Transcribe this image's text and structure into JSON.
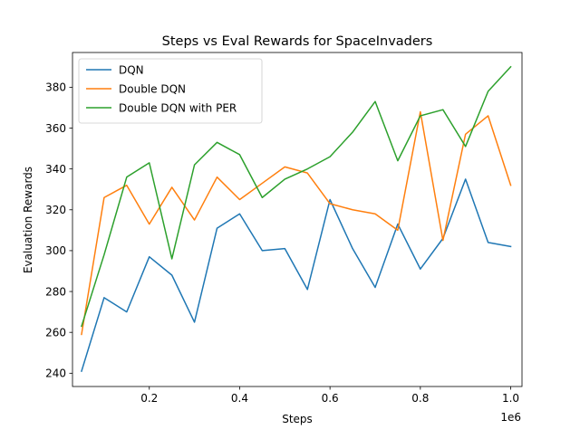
{
  "chart_data": {
    "type": "line",
    "title": "Steps vs Eval Rewards for SpaceInvaders",
    "xlabel": "Steps",
    "ylabel": "Evaluation Rewards",
    "x_offset_label": "1e6",
    "xlim": [
      0.03,
      1.025
    ],
    "ylim": [
      233.5,
      397
    ],
    "x_ticks": [
      0.2,
      0.4,
      0.6,
      0.8,
      1.0
    ],
    "x_tick_labels": [
      "0.2",
      "0.4",
      "0.6",
      "0.8",
      "1.0"
    ],
    "y_ticks": [
      240,
      260,
      280,
      300,
      320,
      340,
      360,
      380
    ],
    "y_tick_labels": [
      "240",
      "260",
      "280",
      "300",
      "320",
      "340",
      "360",
      "380"
    ],
    "grid": false,
    "legend_position": "top-left",
    "x": [
      0.05,
      0.1,
      0.15,
      0.2,
      0.25,
      0.3,
      0.35,
      0.4,
      0.45,
      0.5,
      0.55,
      0.6,
      0.65,
      0.7,
      0.75,
      0.8,
      0.85,
      0.9,
      0.95,
      1.0
    ],
    "series": [
      {
        "name": "DQN",
        "color": "#1f77b4",
        "values": [
          241,
          277,
          270,
          297,
          288,
          265,
          311,
          318,
          300,
          301,
          281,
          325,
          301,
          282,
          313,
          291,
          306,
          335,
          304,
          302
        ]
      },
      {
        "name": "Double DQN",
        "color": "#ff7f0e",
        "values": [
          259,
          326,
          332,
          313,
          331,
          315,
          336,
          325,
          333,
          341,
          338,
          323,
          320,
          318,
          310,
          368,
          305,
          357,
          366,
          332
        ]
      },
      {
        "name": "Double DQN with PER",
        "color": "#2ca02c",
        "values": [
          263,
          298,
          336,
          343,
          296,
          342,
          353,
          347,
          326,
          335,
          340,
          346,
          358,
          373,
          344,
          366,
          369,
          351,
          378,
          390
        ]
      }
    ]
  }
}
